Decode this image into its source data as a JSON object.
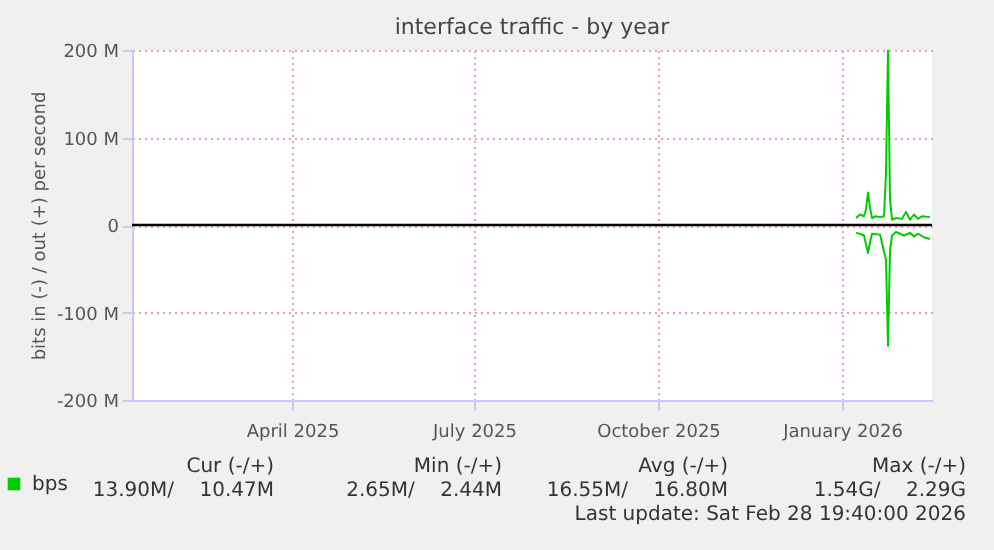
{
  "chart_data": {
    "type": "line",
    "title": "interface traffic - by year",
    "ylabel": "bits in (-) / out (+) per second",
    "xlim": [
      "2025-01-11",
      "2026-02-15"
    ],
    "xticks": [
      {
        "value": "2025-04-01",
        "label": "April 2025"
      },
      {
        "value": "2025-07-01",
        "label": "July 2025"
      },
      {
        "value": "2025-10-01",
        "label": "October 2025"
      },
      {
        "value": "2026-01-01",
        "label": "January 2026"
      }
    ],
    "ylim": [
      -200000000,
      200000000
    ],
    "yticks": [
      {
        "value": -200000000,
        "label": "-200 M"
      },
      {
        "value": -100000000,
        "label": "-100 M"
      },
      {
        "value": 0,
        "label": "0"
      },
      {
        "value": 100000000,
        "label": "100 M"
      },
      {
        "value": 200000000,
        "label": "200 M"
      }
    ],
    "grid": true,
    "legend": "bottom",
    "ref_lines": [
      {
        "axis": "y",
        "value": 0,
        "color": "#000000"
      }
    ],
    "series": [
      {
        "name": "bps",
        "color": "#00cc00",
        "x": [
          "2026-01-08",
          "2026-01-10",
          "2026-01-12",
          "2026-01-13",
          "2026-01-14",
          "2026-01-15",
          "2026-01-16",
          "2026-01-18",
          "2026-01-20",
          "2026-01-22",
          "2026-01-23",
          "2026-01-24",
          "2026-01-25",
          "2026-01-26",
          "2026-01-28",
          "2026-01-31",
          "2026-02-02",
          "2026-02-04",
          "2026-02-06",
          "2026-02-08",
          "2026-02-10",
          "2026-02-14"
        ],
        "values": [
          8000000,
          12000000,
          10000000,
          18000000,
          37000000,
          20000000,
          8000000,
          10000000,
          9000000,
          10000000,
          60000000,
          200000000,
          30000000,
          6000000,
          8000000,
          7000000,
          15000000,
          6000000,
          12000000,
          7000000,
          10000000,
          9000000
        ]
      },
      {
        "color": "#00cc00",
        "x": [
          "2026-01-08",
          "2026-01-10",
          "2026-01-12",
          "2026-01-14",
          "2026-01-15",
          "2026-01-16",
          "2026-01-20",
          "2026-01-23",
          "2026-01-24",
          "2026-01-25",
          "2026-01-26",
          "2026-01-28",
          "2026-02-01",
          "2026-02-04",
          "2026-02-06",
          "2026-02-08",
          "2026-02-11",
          "2026-02-14"
        ],
        "values": [
          -9000000,
          -10000000,
          -12000000,
          -32000000,
          -20000000,
          -10000000,
          -11000000,
          -40000000,
          -138000000,
          -30000000,
          -12000000,
          -8000000,
          -12000000,
          -9000000,
          -13000000,
          -10000000,
          -14000000,
          -16000000
        ]
      }
    ],
    "annotations": [
      "Cur (-/+)",
      "Min (-/+)",
      "Avg (-/+)",
      "Max (-/+)",
      "13.90M/    10.47M",
      "2.65M/    2.44M",
      "16.55M/    16.80M",
      "1.54G/    2.29G",
      "Last update: Sat Feb 28 19:40:00 2026"
    ]
  }
}
